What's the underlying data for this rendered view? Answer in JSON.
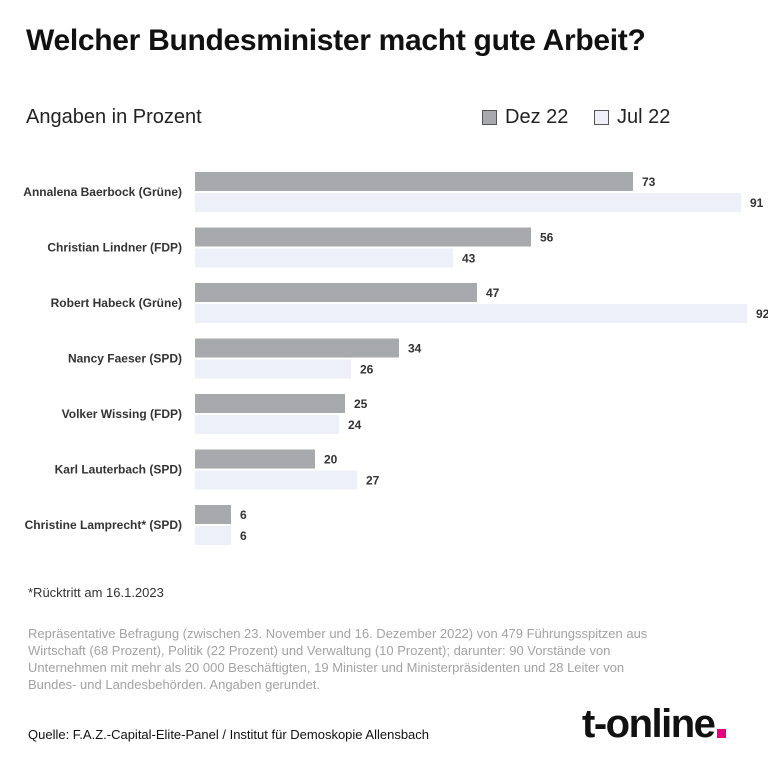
{
  "title": "Welcher Bundesminister macht gute Arbeit?",
  "subtitle": "Angaben in Prozent",
  "legend": {
    "dez": "Dez 22",
    "jul": "Jul 22"
  },
  "colors": {
    "dez": "#a8a9ad",
    "jul": "#edf0f8",
    "accent": "#e4007c"
  },
  "chart_data": {
    "type": "bar",
    "orientation": "horizontal",
    "categories": [
      "Annalena Baerbock (Grüne)",
      "Christian Lindner (FDP)",
      "Robert Habeck (Grüne)",
      "Nancy Faeser (SPD)",
      "Volker Wissing (FDP)",
      "Karl Lauterbach (SPD)",
      "Christine Lamprecht* (SPD)"
    ],
    "series": [
      {
        "name": "Dez 22",
        "values": [
          73,
          56,
          47,
          34,
          25,
          20,
          6
        ]
      },
      {
        "name": "Jul 22",
        "values": [
          91,
          43,
          92,
          26,
          24,
          27,
          6
        ]
      }
    ],
    "xlim": [
      0,
      100
    ],
    "grid": false,
    "legend_position": "top-right"
  },
  "footnote": "*Rücktritt am 16.1.2023",
  "methodology": "Repräsentative Befragung (zwischen 23. November und 16. Dezember 2022) von 479 Führungsspitzen aus Wirtschaft (68 Prozent), Politik (22 Prozent) und Verwaltung (10 Prozent); darunter: 90 Vorstände von Unternehmen mit mehr als 20 000 Beschäftigten, 19 Minister und Ministerpräsidenten und 28 Leiter von Bundes- und Landesbehörden. Angaben gerundet.",
  "source": "Quelle: F.A.Z.-Capital-Elite-Panel / Institut für Demoskopie Allensbach",
  "logo_text": "t-online"
}
